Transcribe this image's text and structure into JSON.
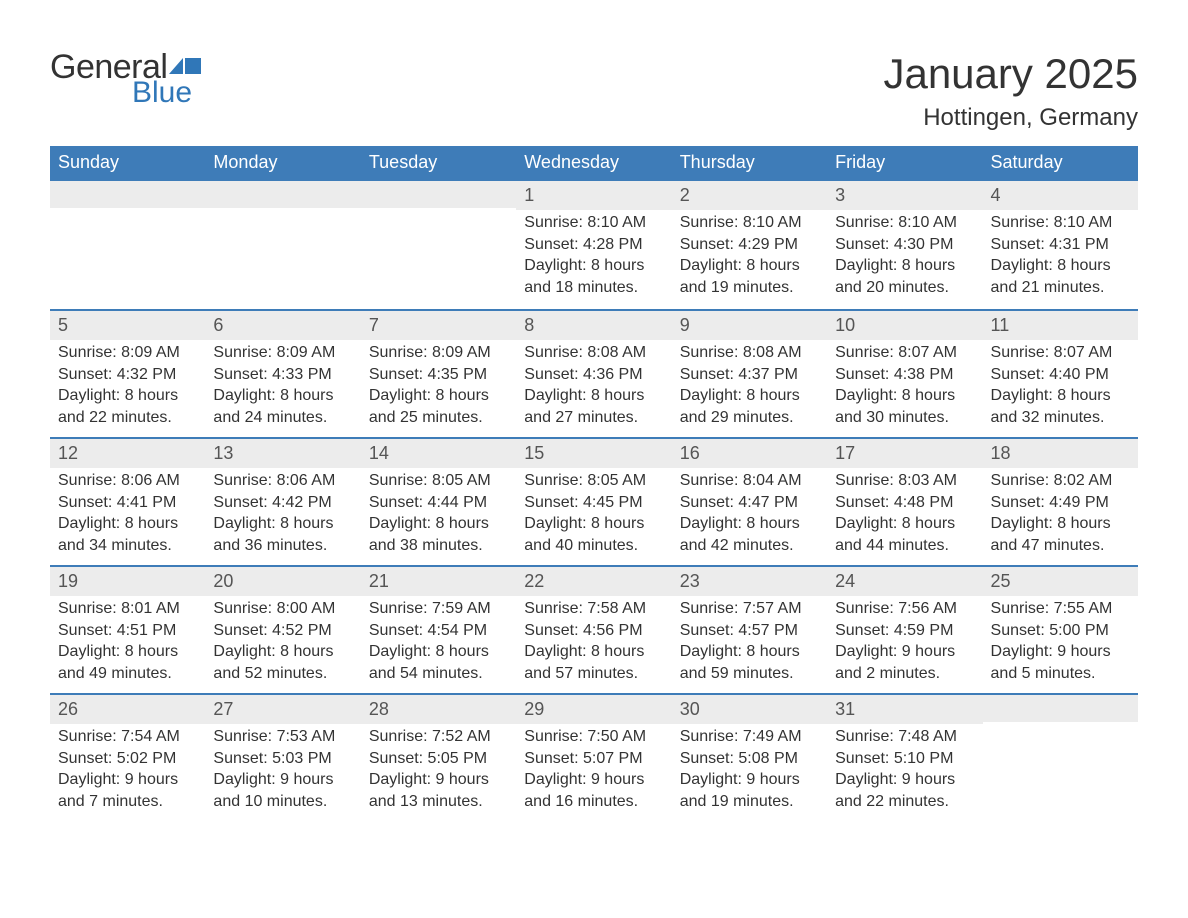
{
  "logo": {
    "general": "General",
    "blue": "Blue"
  },
  "header": {
    "title": "January 2025",
    "location": "Hottingen, Germany"
  },
  "colors": {
    "header_bg": "#3e7cb8",
    "header_text": "#ffffff",
    "daynum_bg": "#ececec",
    "border": "#3e7cb8",
    "text": "#333333",
    "logo_blue": "#3077b8"
  },
  "weekdays": [
    "Sunday",
    "Monday",
    "Tuesday",
    "Wednesday",
    "Thursday",
    "Friday",
    "Saturday"
  ],
  "weeks": [
    [
      null,
      null,
      null,
      {
        "n": "1",
        "sunrise": "Sunrise: 8:10 AM",
        "sunset": "Sunset: 4:28 PM",
        "dl1": "Daylight: 8 hours",
        "dl2": "and 18 minutes."
      },
      {
        "n": "2",
        "sunrise": "Sunrise: 8:10 AM",
        "sunset": "Sunset: 4:29 PM",
        "dl1": "Daylight: 8 hours",
        "dl2": "and 19 minutes."
      },
      {
        "n": "3",
        "sunrise": "Sunrise: 8:10 AM",
        "sunset": "Sunset: 4:30 PM",
        "dl1": "Daylight: 8 hours",
        "dl2": "and 20 minutes."
      },
      {
        "n": "4",
        "sunrise": "Sunrise: 8:10 AM",
        "sunset": "Sunset: 4:31 PM",
        "dl1": "Daylight: 8 hours",
        "dl2": "and 21 minutes."
      }
    ],
    [
      {
        "n": "5",
        "sunrise": "Sunrise: 8:09 AM",
        "sunset": "Sunset: 4:32 PM",
        "dl1": "Daylight: 8 hours",
        "dl2": "and 22 minutes."
      },
      {
        "n": "6",
        "sunrise": "Sunrise: 8:09 AM",
        "sunset": "Sunset: 4:33 PM",
        "dl1": "Daylight: 8 hours",
        "dl2": "and 24 minutes."
      },
      {
        "n": "7",
        "sunrise": "Sunrise: 8:09 AM",
        "sunset": "Sunset: 4:35 PM",
        "dl1": "Daylight: 8 hours",
        "dl2": "and 25 minutes."
      },
      {
        "n": "8",
        "sunrise": "Sunrise: 8:08 AM",
        "sunset": "Sunset: 4:36 PM",
        "dl1": "Daylight: 8 hours",
        "dl2": "and 27 minutes."
      },
      {
        "n": "9",
        "sunrise": "Sunrise: 8:08 AM",
        "sunset": "Sunset: 4:37 PM",
        "dl1": "Daylight: 8 hours",
        "dl2": "and 29 minutes."
      },
      {
        "n": "10",
        "sunrise": "Sunrise: 8:07 AM",
        "sunset": "Sunset: 4:38 PM",
        "dl1": "Daylight: 8 hours",
        "dl2": "and 30 minutes."
      },
      {
        "n": "11",
        "sunrise": "Sunrise: 8:07 AM",
        "sunset": "Sunset: 4:40 PM",
        "dl1": "Daylight: 8 hours",
        "dl2": "and 32 minutes."
      }
    ],
    [
      {
        "n": "12",
        "sunrise": "Sunrise: 8:06 AM",
        "sunset": "Sunset: 4:41 PM",
        "dl1": "Daylight: 8 hours",
        "dl2": "and 34 minutes."
      },
      {
        "n": "13",
        "sunrise": "Sunrise: 8:06 AM",
        "sunset": "Sunset: 4:42 PM",
        "dl1": "Daylight: 8 hours",
        "dl2": "and 36 minutes."
      },
      {
        "n": "14",
        "sunrise": "Sunrise: 8:05 AM",
        "sunset": "Sunset: 4:44 PM",
        "dl1": "Daylight: 8 hours",
        "dl2": "and 38 minutes."
      },
      {
        "n": "15",
        "sunrise": "Sunrise: 8:05 AM",
        "sunset": "Sunset: 4:45 PM",
        "dl1": "Daylight: 8 hours",
        "dl2": "and 40 minutes."
      },
      {
        "n": "16",
        "sunrise": "Sunrise: 8:04 AM",
        "sunset": "Sunset: 4:47 PM",
        "dl1": "Daylight: 8 hours",
        "dl2": "and 42 minutes."
      },
      {
        "n": "17",
        "sunrise": "Sunrise: 8:03 AM",
        "sunset": "Sunset: 4:48 PM",
        "dl1": "Daylight: 8 hours",
        "dl2": "and 44 minutes."
      },
      {
        "n": "18",
        "sunrise": "Sunrise: 8:02 AM",
        "sunset": "Sunset: 4:49 PM",
        "dl1": "Daylight: 8 hours",
        "dl2": "and 47 minutes."
      }
    ],
    [
      {
        "n": "19",
        "sunrise": "Sunrise: 8:01 AM",
        "sunset": "Sunset: 4:51 PM",
        "dl1": "Daylight: 8 hours",
        "dl2": "and 49 minutes."
      },
      {
        "n": "20",
        "sunrise": "Sunrise: 8:00 AM",
        "sunset": "Sunset: 4:52 PM",
        "dl1": "Daylight: 8 hours",
        "dl2": "and 52 minutes."
      },
      {
        "n": "21",
        "sunrise": "Sunrise: 7:59 AM",
        "sunset": "Sunset: 4:54 PM",
        "dl1": "Daylight: 8 hours",
        "dl2": "and 54 minutes."
      },
      {
        "n": "22",
        "sunrise": "Sunrise: 7:58 AM",
        "sunset": "Sunset: 4:56 PM",
        "dl1": "Daylight: 8 hours",
        "dl2": "and 57 minutes."
      },
      {
        "n": "23",
        "sunrise": "Sunrise: 7:57 AM",
        "sunset": "Sunset: 4:57 PM",
        "dl1": "Daylight: 8 hours",
        "dl2": "and 59 minutes."
      },
      {
        "n": "24",
        "sunrise": "Sunrise: 7:56 AM",
        "sunset": "Sunset: 4:59 PM",
        "dl1": "Daylight: 9 hours",
        "dl2": "and 2 minutes."
      },
      {
        "n": "25",
        "sunrise": "Sunrise: 7:55 AM",
        "sunset": "Sunset: 5:00 PM",
        "dl1": "Daylight: 9 hours",
        "dl2": "and 5 minutes."
      }
    ],
    [
      {
        "n": "26",
        "sunrise": "Sunrise: 7:54 AM",
        "sunset": "Sunset: 5:02 PM",
        "dl1": "Daylight: 9 hours",
        "dl2": "and 7 minutes."
      },
      {
        "n": "27",
        "sunrise": "Sunrise: 7:53 AM",
        "sunset": "Sunset: 5:03 PM",
        "dl1": "Daylight: 9 hours",
        "dl2": "and 10 minutes."
      },
      {
        "n": "28",
        "sunrise": "Sunrise: 7:52 AM",
        "sunset": "Sunset: 5:05 PM",
        "dl1": "Daylight: 9 hours",
        "dl2": "and 13 minutes."
      },
      {
        "n": "29",
        "sunrise": "Sunrise: 7:50 AM",
        "sunset": "Sunset: 5:07 PM",
        "dl1": "Daylight: 9 hours",
        "dl2": "and 16 minutes."
      },
      {
        "n": "30",
        "sunrise": "Sunrise: 7:49 AM",
        "sunset": "Sunset: 5:08 PM",
        "dl1": "Daylight: 9 hours",
        "dl2": "and 19 minutes."
      },
      {
        "n": "31",
        "sunrise": "Sunrise: 7:48 AM",
        "sunset": "Sunset: 5:10 PM",
        "dl1": "Daylight: 9 hours",
        "dl2": "and 22 minutes."
      },
      null
    ]
  ]
}
